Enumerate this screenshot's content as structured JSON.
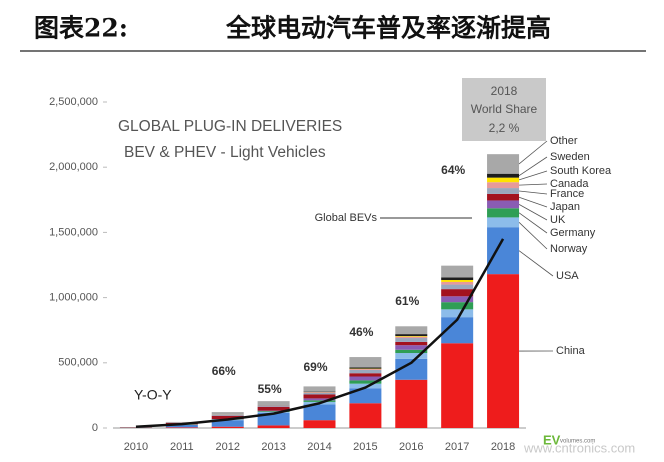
{
  "header": {
    "figure": "图表22:",
    "title": "全球电动汽车普及率逐渐提高"
  },
  "chart_data": {
    "type": "stacked_bar",
    "title_lines": [
      "GLOBAL PLUG-IN DELIVERIES",
      "BEV & PHEV - Light Vehicles"
    ],
    "categories": [
      "2010",
      "2011",
      "2012",
      "2013",
      "2014",
      "2015",
      "2016",
      "2017",
      "2018"
    ],
    "series": [
      {
        "name": "China",
        "color": "#ee1c1c",
        "values": [
          1000,
          5000,
          10000,
          20000,
          60000,
          190000,
          370000,
          650000,
          1180000
        ]
      },
      {
        "name": "USA",
        "color": "#4a86d8",
        "values": [
          1000,
          18000,
          50000,
          95000,
          120000,
          115000,
          160000,
          200000,
          360000
        ]
      },
      {
        "name": "Norway",
        "color": "#8cbcea",
        "values": [
          500,
          2000,
          4000,
          8000,
          20000,
          35000,
          45000,
          60000,
          75000
        ]
      },
      {
        "name": "Germany",
        "color": "#2f9e55",
        "values": [
          500,
          2000,
          3000,
          6000,
          12000,
          25000,
          25000,
          55000,
          70000
        ]
      },
      {
        "name": "UK",
        "color": "#8a5cb4",
        "values": [
          200,
          1000,
          2000,
          4000,
          15000,
          30000,
          35000,
          45000,
          60000
        ]
      },
      {
        "name": "Japan",
        "color": "#a3121f",
        "values": [
          2500,
          12000,
          25000,
          30000,
          30000,
          25000,
          25000,
          55000,
          50000
        ]
      },
      {
        "name": "France",
        "color": "#9aa7bd",
        "values": [
          500,
          2500,
          6000,
          9000,
          12000,
          25000,
          30000,
          35000,
          45000
        ]
      },
      {
        "name": "Canada",
        "color": "#e79a9a",
        "values": [
          100,
          500,
          1000,
          2000,
          5000,
          7000,
          10000,
          20000,
          45000
        ]
      },
      {
        "name": "South Korea",
        "color": "#ffe300",
        "values": [
          100,
          300,
          500,
          500,
          1000,
          3000,
          5000,
          15000,
          35000
        ]
      },
      {
        "name": "Sweden",
        "color": "#1d1d1d",
        "values": [
          100,
          200,
          500,
          1500,
          4000,
          9000,
          15000,
          20000,
          30000
        ]
      },
      {
        "name": "Other",
        "color": "#a8a8a8",
        "values": [
          500,
          3000,
          20000,
          30000,
          40000,
          80000,
          60000,
          90000,
          150000
        ]
      }
    ],
    "line": {
      "name": "Global BEVs",
      "color": "#111111",
      "values": [
        10000,
        30000,
        65000,
        110000,
        190000,
        310000,
        500000,
        830000,
        1450000
      ]
    },
    "yoy": {
      "label": "Y-O-Y",
      "values": [
        66,
        55,
        69,
        46,
        61,
        64
      ],
      "value_labels": [
        "66%",
        "55%",
        "69%",
        "46%",
        "61%",
        "64%"
      ]
    },
    "world_share": [
      "2018",
      "World Share",
      "2,2 %"
    ],
    "ylim": [
      0,
      2500000
    ],
    "yticks": [
      0,
      {
        "value": 500000,
        "label": "500,000"
      },
      {
        "value": 1000000,
        "label": "1,000,000"
      },
      {
        "value": 1500000,
        "label": "1,500,000"
      },
      {
        "value": 2000000,
        "label": "2,000,000"
      },
      {
        "value": 2500000,
        "label": "2,500,000"
      }
    ],
    "grid": false,
    "logo": {
      "mark": "EV",
      "text": "volumes.com"
    },
    "watermark": "www.cntronics.com"
  }
}
